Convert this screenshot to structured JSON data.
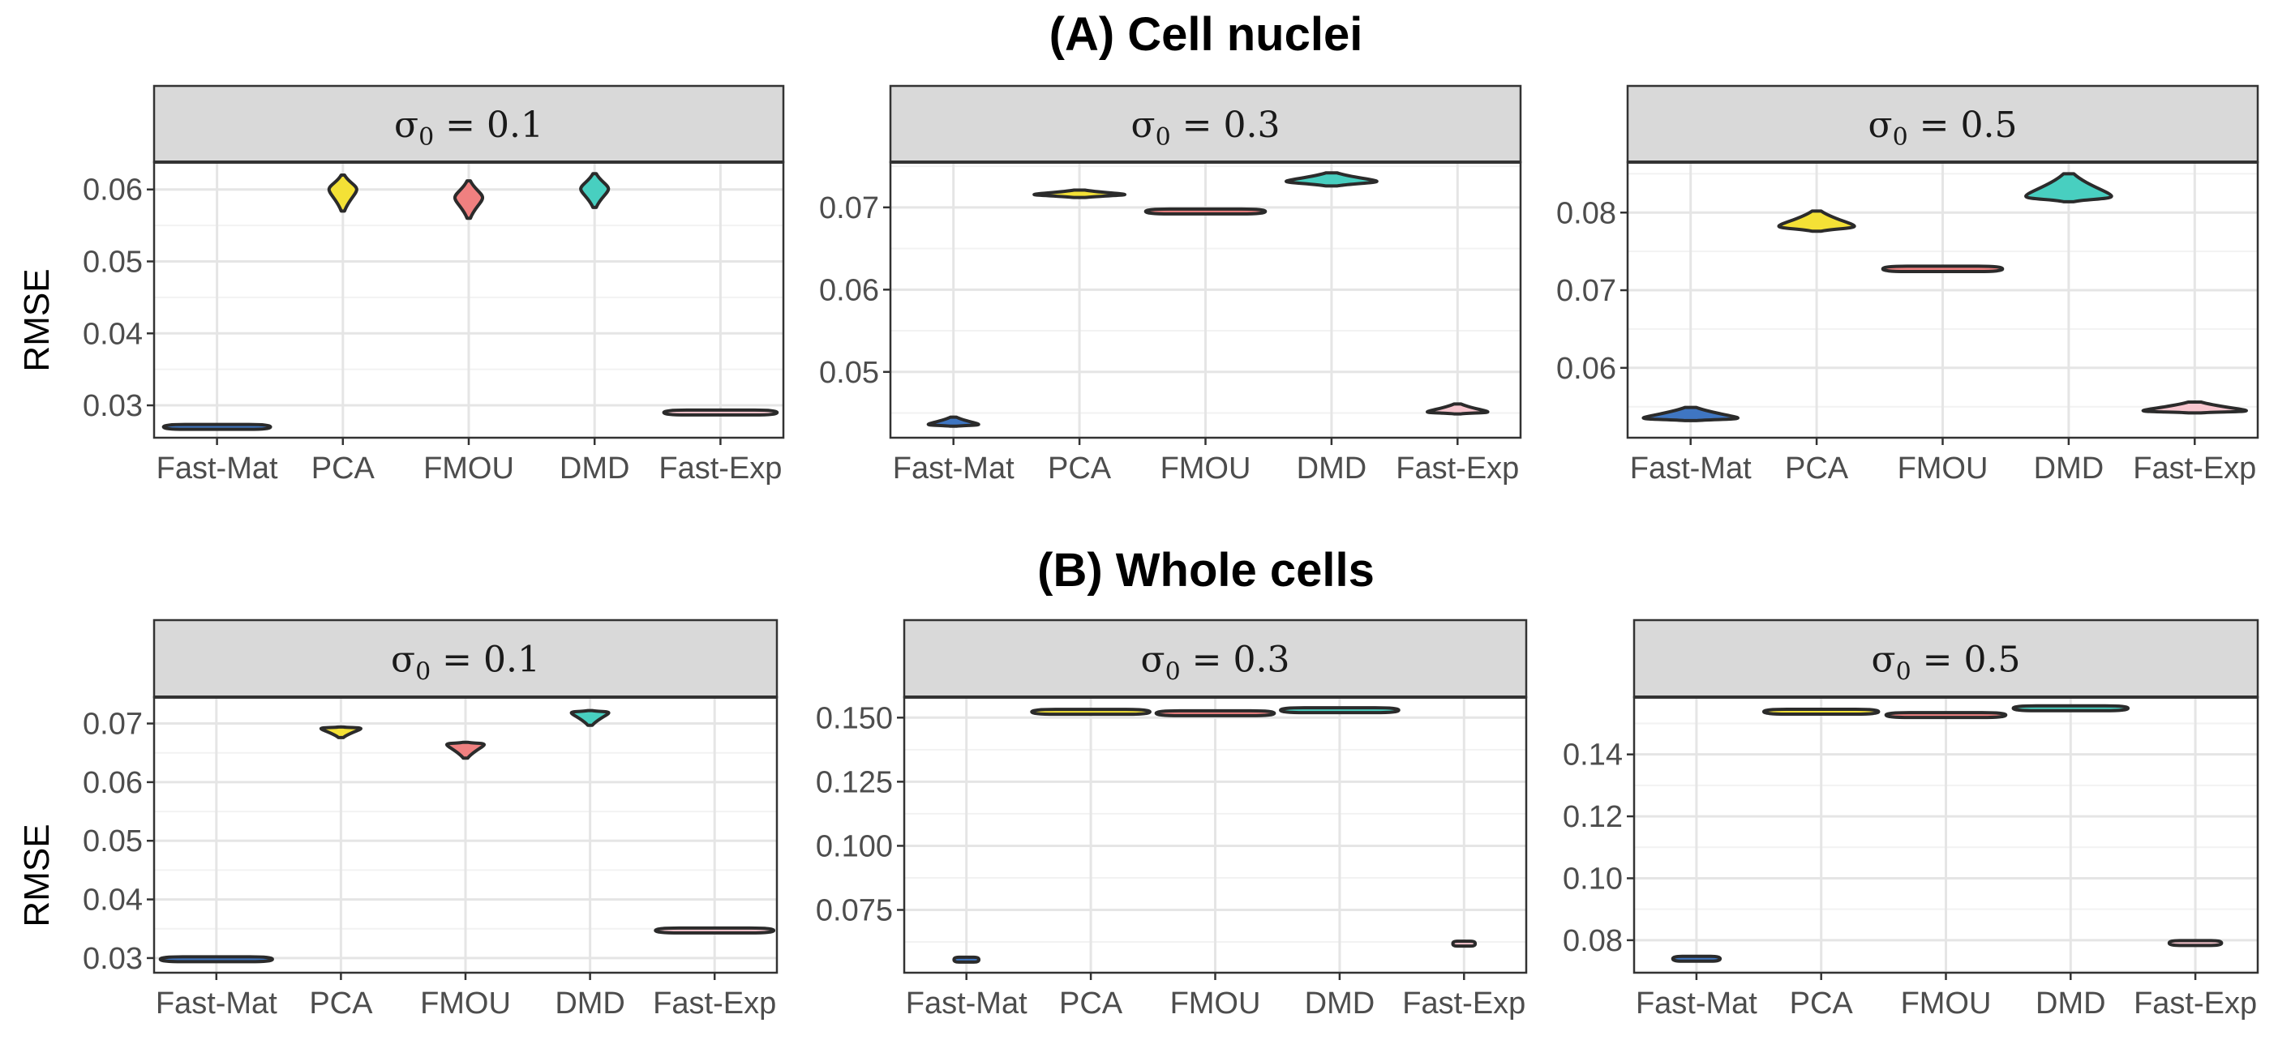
{
  "figure": {
    "sections": [
      {
        "title": "(A) Cell nuclei",
        "ylabel": "RMSE",
        "panels": [
          {
            "strip_symbol": "σ",
            "strip_sub": "0",
            "strip_rest": " = 0.1",
            "ylim": [
              0.0255,
              0.0638
            ],
            "yticks": [
              0.03,
              0.04,
              0.05,
              0.06
            ],
            "ytick_labels": [
              "0.03",
              "0.04",
              "0.05",
              "0.06"
            ]
          },
          {
            "strip_symbol": "σ",
            "strip_sub": "0",
            "strip_rest": " = 0.3",
            "ylim": [
              0.042,
              0.0755
            ],
            "yticks": [
              0.05,
              0.06,
              0.07
            ],
            "ytick_labels": [
              "0.05",
              "0.06",
              "0.07"
            ]
          },
          {
            "strip_symbol": "σ",
            "strip_sub": "0",
            "strip_rest": " = 0.5",
            "ylim": [
              0.051,
              0.0865
            ],
            "yticks": [
              0.06,
              0.07,
              0.08
            ],
            "ytick_labels": [
              "0.06",
              "0.07",
              "0.08"
            ]
          }
        ]
      },
      {
        "title": "(B) Whole cells",
        "ylabel": "RMSE",
        "panels": [
          {
            "strip_symbol": "σ",
            "strip_sub": "0",
            "strip_rest": " = 0.1",
            "ylim": [
              0.0275,
              0.0745
            ],
            "yticks": [
              0.03,
              0.04,
              0.05,
              0.06,
              0.07
            ],
            "ytick_labels": [
              "0.03",
              "0.04",
              "0.05",
              "0.06",
              "0.07"
            ]
          },
          {
            "strip_symbol": "σ",
            "strip_sub": "0",
            "strip_rest": " = 0.3",
            "ylim": [
              0.0505,
              0.158
            ],
            "yticks": [
              0.075,
              0.1,
              0.125,
              0.15
            ],
            "ytick_labels": [
              "0.075",
              "0.100",
              "0.125",
              "0.150"
            ]
          },
          {
            "strip_symbol": "σ",
            "strip_sub": "0",
            "strip_rest": " = 0.5",
            "ylim": [
              0.0695,
              0.1585
            ],
            "yticks": [
              0.08,
              0.1,
              0.12,
              0.14
            ],
            "ytick_labels": [
              "0.08",
              "0.10",
              "0.12",
              "0.14"
            ]
          }
        ]
      }
    ]
  },
  "colors": {
    "Fast-Mat": "#3f76c2",
    "PCA": "#f4e136",
    "FMOU": "#f08080",
    "DMD": "#48cfc0",
    "Fast-Exp": "#f8c6cf",
    "strip_bg": "#d9d9d9",
    "grid_major": "#e5e5e5",
    "grid_minor": "#f2f2f2",
    "frame": "#333333",
    "outline": "#2b2b2b"
  },
  "chart_data": [
    {
      "type": "violin",
      "section": "(A) Cell nuclei",
      "panel": "σ0 = 0.1",
      "title": "σ0 = 0.1",
      "xlabel": "",
      "ylabel": "RMSE",
      "categories": [
        "Fast-Mat",
        "PCA",
        "FMOU",
        "DMD",
        "Fast-Exp"
      ],
      "ylim": [
        0.0255,
        0.0638
      ],
      "violins": [
        {
          "category": "Fast-Mat",
          "min": 0.02685,
          "max": 0.02715,
          "width": 0.85,
          "peak": 0.5
        },
        {
          "category": "PCA",
          "min": 0.057,
          "max": 0.062,
          "width": 0.22,
          "peak": 0.6
        },
        {
          "category": "FMOU",
          "min": 0.056,
          "max": 0.0612,
          "width": 0.22,
          "peak": 0.55
        },
        {
          "category": "DMD",
          "min": 0.0575,
          "max": 0.0622,
          "width": 0.22,
          "peak": 0.55
        },
        {
          "category": "Fast-Exp",
          "min": 0.02885,
          "max": 0.02915,
          "width": 0.9,
          "peak": 0.5
        }
      ]
    },
    {
      "type": "violin",
      "section": "(A) Cell nuclei",
      "panel": "σ0 = 0.3",
      "title": "σ0 = 0.3",
      "xlabel": "",
      "ylabel": "RMSE",
      "categories": [
        "Fast-Mat",
        "PCA",
        "FMOU",
        "DMD",
        "Fast-Exp"
      ],
      "ylim": [
        0.042,
        0.0755
      ],
      "violins": [
        {
          "category": "Fast-Mat",
          "min": 0.0434,
          "max": 0.0445,
          "width": 0.4,
          "peak": 0.2
        },
        {
          "category": "PCA",
          "min": 0.0712,
          "max": 0.0721,
          "width": 0.72,
          "peak": 0.4
        },
        {
          "category": "FMOU",
          "min": 0.06935,
          "max": 0.06965,
          "width": 0.95,
          "peak": 0.5
        },
        {
          "category": "DMD",
          "min": 0.0726,
          "max": 0.0742,
          "width": 0.72,
          "peak": 0.35
        },
        {
          "category": "Fast-Exp",
          "min": 0.0449,
          "max": 0.0461,
          "width": 0.48,
          "peak": 0.2
        }
      ]
    },
    {
      "type": "violin",
      "section": "(A) Cell nuclei",
      "panel": "σ0 = 0.5",
      "title": "σ0 = 0.5",
      "xlabel": "",
      "ylabel": "RMSE",
      "categories": [
        "Fast-Mat",
        "PCA",
        "FMOU",
        "DMD",
        "Fast-Exp"
      ],
      "ylim": [
        0.051,
        0.0865
      ],
      "violins": [
        {
          "category": "Fast-Mat",
          "min": 0.0532,
          "max": 0.0549,
          "width": 0.75,
          "peak": 0.2
        },
        {
          "category": "PCA",
          "min": 0.0776,
          "max": 0.0802,
          "width": 0.6,
          "peak": 0.25
        },
        {
          "category": "FMOU",
          "min": 0.0724,
          "max": 0.0731,
          "width": 0.95,
          "peak": 0.5
        },
        {
          "category": "DMD",
          "min": 0.0814,
          "max": 0.085,
          "width": 0.68,
          "peak": 0.2
        },
        {
          "category": "Fast-Exp",
          "min": 0.0542,
          "max": 0.0556,
          "width": 0.82,
          "peak": 0.2
        }
      ]
    },
    {
      "type": "violin",
      "section": "(B) Whole cells",
      "panel": "σ0 = 0.1",
      "title": "σ0 = 0.1",
      "xlabel": "",
      "ylabel": "RMSE",
      "categories": [
        "Fast-Mat",
        "PCA",
        "FMOU",
        "DMD",
        "Fast-Exp"
      ],
      "ylim": [
        0.0275,
        0.0745
      ],
      "violins": [
        {
          "category": "Fast-Mat",
          "min": 0.02965,
          "max": 0.02995,
          "width": 0.9,
          "peak": 0.5
        },
        {
          "category": "PCA",
          "min": 0.0676,
          "max": 0.0694,
          "width": 0.32,
          "peak": 0.85
        },
        {
          "category": "FMOU",
          "min": 0.0641,
          "max": 0.0668,
          "width": 0.3,
          "peak": 0.85
        },
        {
          "category": "DMD",
          "min": 0.0697,
          "max": 0.0722,
          "width": 0.3,
          "peak": 0.85
        },
        {
          "category": "Fast-Exp",
          "min": 0.03455,
          "max": 0.03485,
          "width": 0.95,
          "peak": 0.5
        }
      ]
    },
    {
      "type": "violin",
      "section": "(B) Whole cells",
      "panel": "σ0 = 0.3",
      "title": "σ0 = 0.3",
      "xlabel": "",
      "ylabel": "RMSE",
      "categories": [
        "Fast-Mat",
        "PCA",
        "FMOU",
        "DMD",
        "Fast-Exp"
      ],
      "ylim": [
        0.0505,
        0.158
      ],
      "violins": [
        {
          "category": "Fast-Mat",
          "min": 0.055,
          "max": 0.0562,
          "width": 0.2,
          "peak": 0.5
        },
        {
          "category": "PCA",
          "min": 0.1519,
          "max": 0.1526,
          "width": 0.95,
          "peak": 0.5
        },
        {
          "category": "FMOU",
          "min": 0.1513,
          "max": 0.1521,
          "width": 0.95,
          "peak": 0.5
        },
        {
          "category": "DMD",
          "min": 0.1525,
          "max": 0.1533,
          "width": 0.95,
          "peak": 0.5
        },
        {
          "category": "Fast-Exp",
          "min": 0.0612,
          "max": 0.0625,
          "width": 0.18,
          "peak": 0.5
        }
      ]
    },
    {
      "type": "violin",
      "section": "(B) Whole cells",
      "panel": "σ0 = 0.5",
      "title": "σ0 = 0.5",
      "xlabel": "",
      "ylabel": "RMSE",
      "categories": [
        "Fast-Mat",
        "PCA",
        "FMOU",
        "DMD",
        "Fast-Exp"
      ],
      "ylim": [
        0.0695,
        0.1585
      ],
      "violins": [
        {
          "category": "Fast-Mat",
          "min": 0.0734,
          "max": 0.0746,
          "width": 0.38,
          "peak": 0.5
        },
        {
          "category": "PCA",
          "min": 0.1534,
          "max": 0.1542,
          "width": 0.92,
          "peak": 0.5
        },
        {
          "category": "FMOU",
          "min": 0.1523,
          "max": 0.1531,
          "width": 0.96,
          "peak": 0.5
        },
        {
          "category": "DMD",
          "min": 0.1545,
          "max": 0.1553,
          "width": 0.92,
          "peak": 0.5
        },
        {
          "category": "Fast-Exp",
          "min": 0.0785,
          "max": 0.0797,
          "width": 0.42,
          "peak": 0.5
        }
      ]
    }
  ]
}
